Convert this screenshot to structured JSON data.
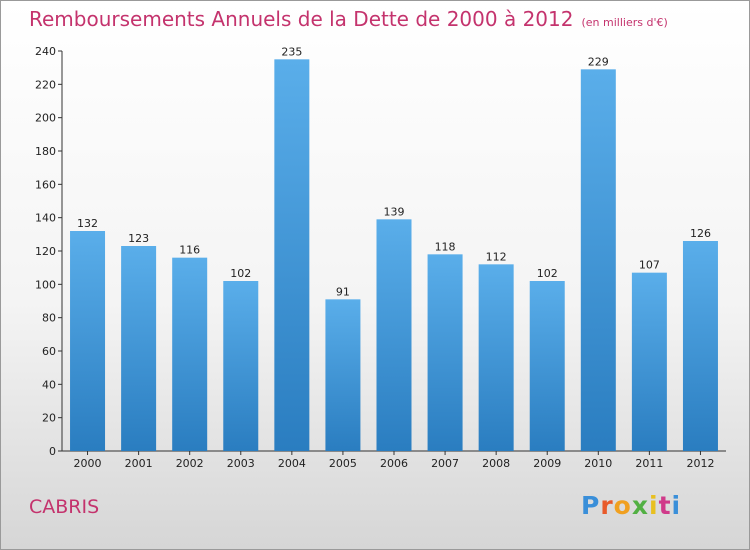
{
  "header": {
    "title": "Remboursements Annuels de la Dette de 2000 à 2012",
    "unit": "(en milliers d'€)"
  },
  "footer": {
    "city": "CABRIS",
    "logo_text": "Proxiti"
  },
  "colors": {
    "title": "#c4336d",
    "bar_top": "#5aaeea",
    "bar_bottom": "#2a7dc0"
  },
  "chart_data": {
    "type": "bar",
    "title": "Remboursements Annuels de la Dette de 2000 à 2012",
    "subtitle": "(en milliers d'€)",
    "xlabel": "",
    "ylabel": "",
    "categories": [
      "2000",
      "2001",
      "2002",
      "2003",
      "2004",
      "2005",
      "2006",
      "2007",
      "2008",
      "2009",
      "2010",
      "2011",
      "2012"
    ],
    "values": [
      132,
      123,
      116,
      102,
      235,
      91,
      139,
      118,
      112,
      102,
      229,
      107,
      126
    ],
    "ylim": [
      0,
      240
    ],
    "yticks": [
      0,
      20,
      40,
      60,
      80,
      100,
      120,
      140,
      160,
      180,
      200,
      220,
      240
    ],
    "grid": false,
    "legend": "none",
    "data_labels": true
  }
}
